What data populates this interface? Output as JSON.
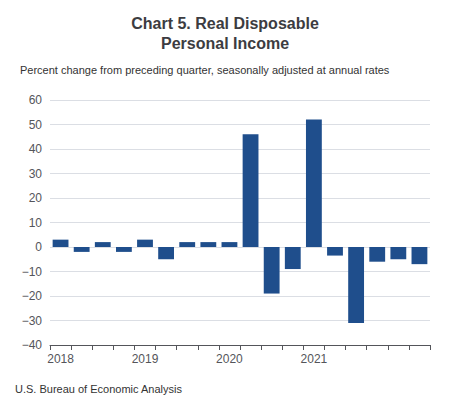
{
  "chart_data": {
    "type": "bar",
    "title": "Chart 5. Real Disposable\nPersonal Income",
    "subtitle": "Percent change from preceding quarter, seasonally adjusted at annual rates",
    "annotations": [
      "U.S. Bureau of Economic Analysis"
    ],
    "categories": [
      "2018",
      null,
      null,
      null,
      "2019",
      null,
      null,
      null,
      "2020",
      null,
      null,
      null,
      "2021",
      null,
      null,
      null,
      null,
      null
    ],
    "values": [
      3.0,
      -2.0,
      2.0,
      -2.0,
      3.0,
      -5.0,
      2.0,
      2.0,
      2.0,
      46.0,
      -19.0,
      -9.0,
      52.0,
      -3.5,
      -31.0,
      -6.0,
      -5.0,
      -7.0
    ],
    "color": "#1f4e8c",
    "ylim": [
      -40,
      60
    ],
    "yticks": [
      {
        "value": -40,
        "label": "−40"
      },
      {
        "value": -30,
        "label": "−30"
      },
      {
        "value": -20,
        "label": "−20"
      },
      {
        "value": -10,
        "label": "−10"
      },
      0,
      10,
      20,
      30,
      40,
      50,
      60
    ],
    "grid": true
  }
}
